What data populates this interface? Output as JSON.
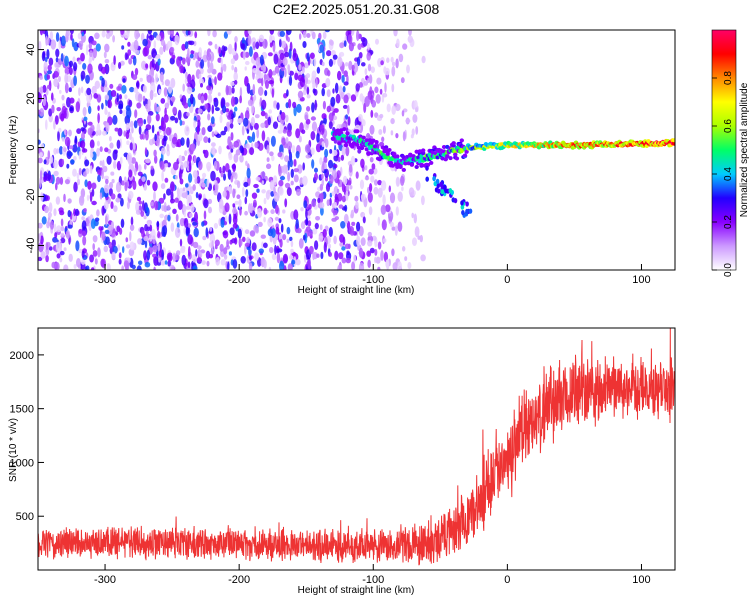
{
  "title": "C2E2.2025.051.20.31.G08",
  "chart_data": [
    {
      "type": "heatmap",
      "name": "spectrogram",
      "xlabel": "Height of straight line (km)",
      "ylabel": "Frequency (Hz)",
      "xlim": [
        -350,
        125
      ],
      "ylim": [
        -50,
        48
      ],
      "xticks": [
        -300,
        -200,
        -100,
        0,
        100
      ],
      "yticks": [
        -40,
        -20,
        0,
        20,
        40
      ],
      "noise_region": {
        "x_from": -350,
        "x_to": -62
      },
      "signal_line": [
        {
          "x": -130,
          "freq": 5,
          "amp": 0.4
        },
        {
          "x": -110,
          "freq": 3,
          "amp": 0.45
        },
        {
          "x": -95,
          "freq": -2,
          "amp": 0.5
        },
        {
          "x": -80,
          "freq": -6,
          "amp": 0.45
        },
        {
          "x": -60,
          "freq": -4,
          "amp": 0.5
        },
        {
          "x": -45,
          "freq": -2,
          "amp": 0.5
        },
        {
          "x": -30,
          "freq": 0,
          "amp": 0.6
        },
        {
          "x": 0,
          "freq": 1,
          "amp": 0.7
        },
        {
          "x": 50,
          "freq": 1,
          "amp": 0.85
        },
        {
          "x": 100,
          "freq": 1.5,
          "amp": 0.9
        },
        {
          "x": 125,
          "freq": 2,
          "amp": 0.95
        }
      ],
      "colorbar": {
        "label": "Normalized spectral amplitude",
        "range": [
          0.0,
          1.0
        ],
        "ticks": [
          "0.0",
          "0.2",
          "0.4",
          "0.6",
          "0.8"
        ],
        "tick_values": [
          0.0,
          0.2,
          0.4,
          0.6,
          0.8
        ],
        "colors": [
          "#ffffff",
          "#cc99ff",
          "#8800ff",
          "#2200ff",
          "#00ccff",
          "#00ff66",
          "#aaff00",
          "#ffff00",
          "#ff8800",
          "#ff0000",
          "#ff0066"
        ]
      }
    },
    {
      "type": "line",
      "name": "snr",
      "xlabel": "Height of straight line (km)",
      "ylabel": "SNR (10 * v/v)",
      "xlim": [
        -350,
        125
      ],
      "ylim": [
        0,
        2250
      ],
      "xticks": [
        -300,
        -200,
        -100,
        0,
        100
      ],
      "yticks": [
        500,
        1000,
        1500,
        2000
      ],
      "color": "#ee3333",
      "trend": [
        {
          "x": -350,
          "y": 250
        },
        {
          "x": -200,
          "y": 250
        },
        {
          "x": -120,
          "y": 220
        },
        {
          "x": -80,
          "y": 230
        },
        {
          "x": -60,
          "y": 250
        },
        {
          "x": -40,
          "y": 350
        },
        {
          "x": -25,
          "y": 500
        },
        {
          "x": -10,
          "y": 900
        },
        {
          "x": 10,
          "y": 1250
        },
        {
          "x": 30,
          "y": 1550
        },
        {
          "x": 50,
          "y": 1650
        },
        {
          "x": 80,
          "y": 1700
        },
        {
          "x": 125,
          "y": 1650
        }
      ],
      "noise_amplitude": [
        {
          "x": -350,
          "a": 150
        },
        {
          "x": -100,
          "a": 160
        },
        {
          "x": -40,
          "a": 250
        },
        {
          "x": 0,
          "a": 450
        },
        {
          "x": 50,
          "a": 350
        },
        {
          "x": 125,
          "a": 300
        }
      ]
    }
  ]
}
